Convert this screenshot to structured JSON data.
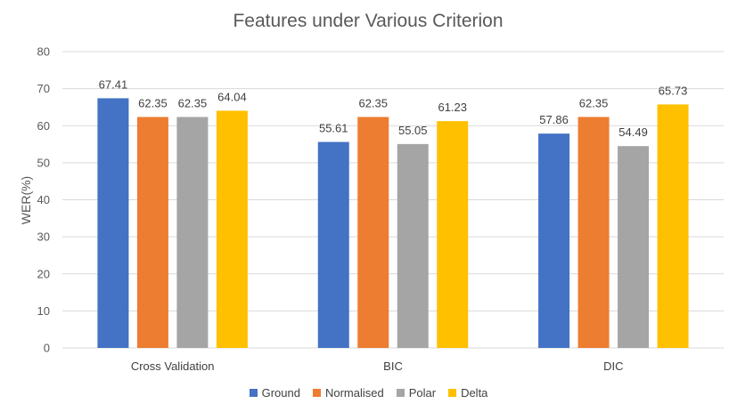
{
  "chart_data": {
    "type": "bar",
    "title": "Features under Various Criterion",
    "xlabel": "",
    "ylabel": "WER(%)",
    "ylim": [
      0,
      80
    ],
    "yticks": [
      0,
      10,
      20,
      30,
      40,
      50,
      60,
      70,
      80
    ],
    "grid": true,
    "legend_position": "bottom",
    "categories": [
      "Cross Validation",
      "BIC",
      "DIC"
    ],
    "series": [
      {
        "name": "Ground",
        "color": "#4472C4",
        "values": [
          67.41,
          55.61,
          57.86
        ]
      },
      {
        "name": "Normalised",
        "color": "#ED7D31",
        "values": [
          62.35,
          62.35,
          62.35
        ]
      },
      {
        "name": "Polar",
        "color": "#A5A5A5",
        "values": [
          62.35,
          55.05,
          54.49
        ]
      },
      {
        "name": "Delta",
        "color": "#FFC000",
        "values": [
          64.04,
          61.23,
          65.73
        ]
      }
    ]
  }
}
